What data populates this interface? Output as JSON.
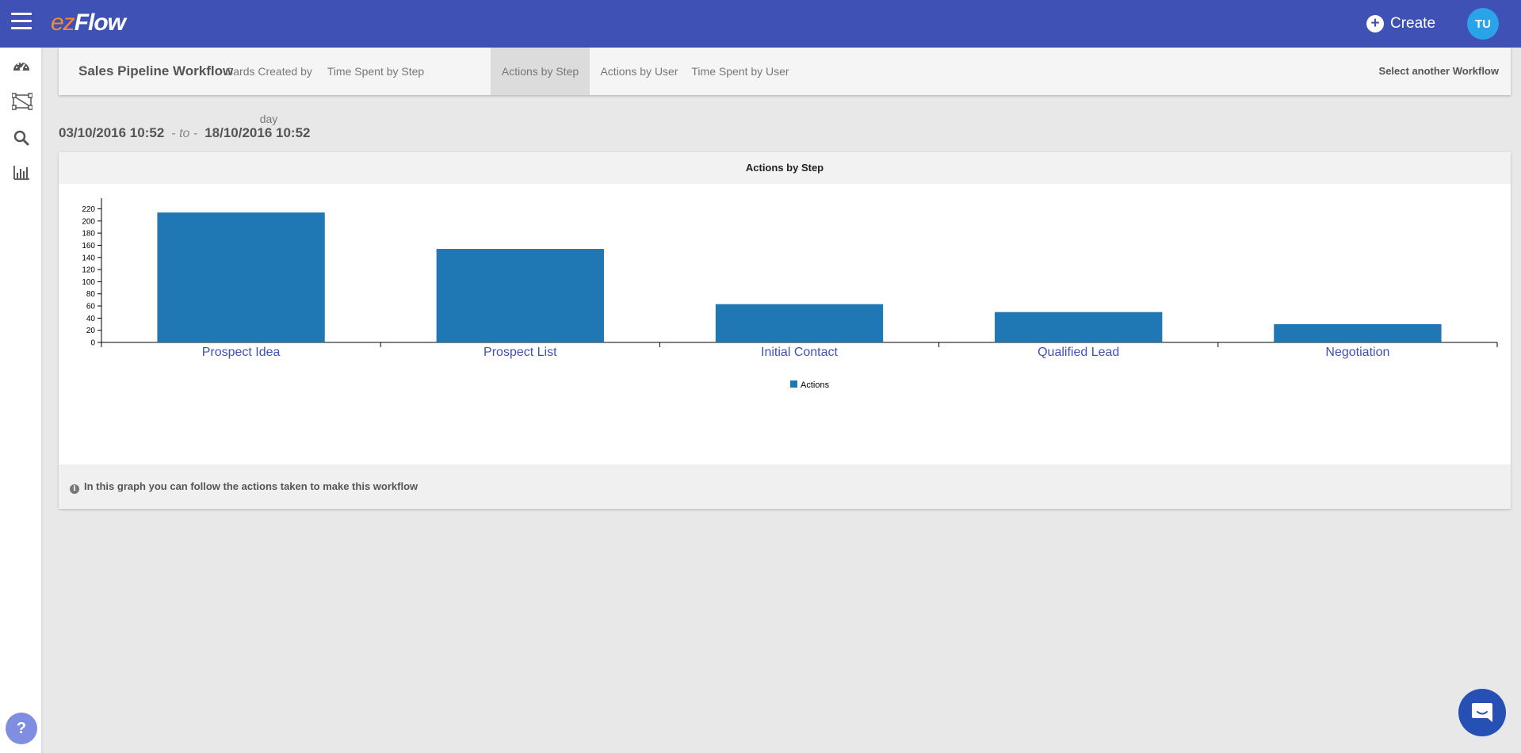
{
  "header": {
    "logo_ez": "ez",
    "logo_flow": "Flow",
    "create_label": "Create",
    "avatar_initials": "TU"
  },
  "sidebar": {
    "icons": [
      "dashboard-icon",
      "workflow-icon",
      "search-icon",
      "bar-chart-icon"
    ],
    "help_label": "?"
  },
  "tabs": {
    "workflow_title": "Sales Pipeline Workflow",
    "items": [
      {
        "label": "Cards Created by day",
        "active": false
      },
      {
        "label": "Time Spent by Step",
        "active": false
      },
      {
        "label": "Actions by Step",
        "active": true
      },
      {
        "label": "Actions by User",
        "active": false
      },
      {
        "label": "Time Spent by User",
        "active": false
      }
    ],
    "select_another": "Select another Workflow"
  },
  "daterange": {
    "from": "03/10/2016 10:52",
    "separator": "- to -",
    "to": "18/10/2016 10:52"
  },
  "panel": {
    "title": "Actions by Step",
    "footer_text": "In this graph you can follow the actions taken to make this workflow",
    "info_icon": "info-icon"
  },
  "chart_data": {
    "type": "bar",
    "categories": [
      "Prospect Idea",
      "Prospect List",
      "Initial Contact",
      "Qualified Lead",
      "Negotiation"
    ],
    "series": [
      {
        "name": "Actions",
        "values": [
          214,
          154,
          63,
          50,
          30
        ],
        "color": "#1f77b4"
      }
    ],
    "yticks": [
      0,
      20,
      40,
      60,
      80,
      100,
      120,
      140,
      160,
      180,
      200,
      220
    ],
    "ylim": [
      0,
      235
    ],
    "legend": "bottom-center",
    "grid": false
  }
}
